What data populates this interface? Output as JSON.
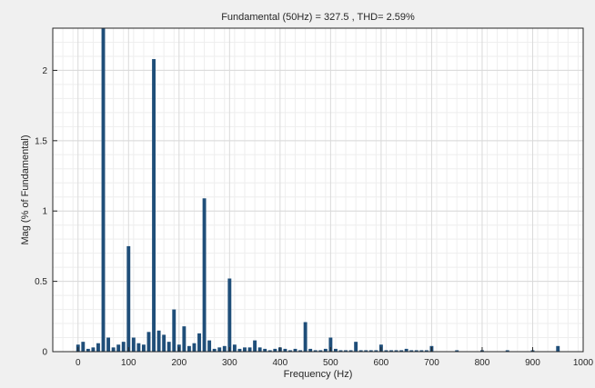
{
  "colors": {
    "figure_background": "#f0f0f0",
    "axes_background": "#ffffff",
    "bar": "#1f4e79",
    "grid_major": "#d9d9d9",
    "grid_minor": "#eeeeee",
    "axis": "#262626"
  },
  "chart_data": {
    "type": "bar",
    "title": "Fundamental (50Hz) = 327.5 , THD= 2.59%",
    "xlabel": "Frequency (Hz)",
    "ylabel": "Mag (% of Fundamental)",
    "xlim": [
      -50,
      1000
    ],
    "ylim": [
      0,
      2.3
    ],
    "grid": "major and minor",
    "xticks": [
      0,
      100,
      200,
      300,
      400,
      500,
      600,
      700,
      800,
      900,
      1000
    ],
    "yticks": [
      0,
      0.5,
      1,
      1.5,
      2
    ],
    "ytick_labels": [
      "0",
      "0.5",
      "1",
      "1.5",
      "2"
    ],
    "bar_width_hz": 7,
    "series": [
      {
        "x": [
          0,
          10,
          20,
          30,
          40,
          50,
          60,
          70,
          80,
          90,
          100,
          110,
          120,
          130,
          140,
          150,
          160,
          170,
          180,
          190,
          200,
          210,
          220,
          230,
          240,
          250,
          260,
          270,
          280,
          290,
          300,
          310,
          320,
          330,
          340,
          350,
          360,
          370,
          380,
          390,
          400,
          410,
          420,
          430,
          440,
          450,
          460,
          470,
          480,
          490,
          500,
          510,
          520,
          530,
          540,
          550,
          560,
          570,
          580,
          590,
          600,
          610,
          620,
          630,
          640,
          650,
          660,
          670,
          680,
          690,
          700,
          750,
          800,
          850,
          900,
          950
        ],
        "values": [
          0.05,
          0.07,
          0.02,
          0.03,
          0.06,
          2.3,
          0.1,
          0.03,
          0.05,
          0.07,
          0.75,
          0.1,
          0.06,
          0.05,
          0.14,
          2.08,
          0.15,
          0.12,
          0.07,
          0.3,
          0.05,
          0.18,
          0.04,
          0.06,
          0.13,
          1.09,
          0.08,
          0.02,
          0.03,
          0.04,
          0.52,
          0.05,
          0.02,
          0.03,
          0.03,
          0.08,
          0.03,
          0.02,
          0.01,
          0.02,
          0.03,
          0.02,
          0.01,
          0.02,
          0.01,
          0.21,
          0.02,
          0.01,
          0.01,
          0.02,
          0.1,
          0.02,
          0.01,
          0.01,
          0.01,
          0.07,
          0.01,
          0.01,
          0.01,
          0.01,
          0.05,
          0.01,
          0.01,
          0.01,
          0.01,
          0.02,
          0.01,
          0.01,
          0.01,
          0.01,
          0.04,
          0.01,
          0.01,
          0.01,
          0.01,
          0.04
        ]
      }
    ]
  }
}
